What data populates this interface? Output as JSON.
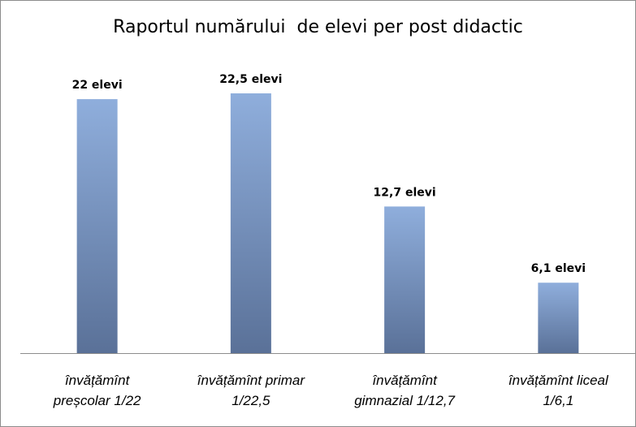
{
  "chart_data": {
    "type": "bar",
    "title": "Raportul numărului  de elevi per post didactic",
    "categories": [
      [
        "învățămînt",
        "preșcolar 1/22"
      ],
      [
        "învățămînt primar",
        "1/22,5"
      ],
      [
        "învățămînt",
        "gimnazial 1/12,7"
      ],
      [
        "învățămînt liceal",
        "1/6,1"
      ]
    ],
    "values": [
      22,
      22.5,
      12.7,
      6.1
    ],
    "data_labels": [
      "22 elevi",
      "22,5 elevi",
      "12,7 elevi",
      "6,1 elevi"
    ],
    "ylim": [
      0,
      22.5
    ],
    "grid": false,
    "legend": "none",
    "colors": {
      "bar_top": "#8faedc",
      "bar_bottom": "#5a7198",
      "axis": "#8c8c8c"
    }
  }
}
